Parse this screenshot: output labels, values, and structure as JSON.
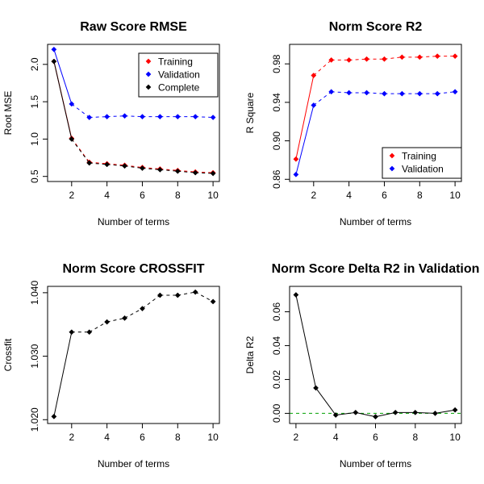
{
  "chart_data": [
    {
      "type": "line",
      "title": "Raw Score RMSE",
      "xlabel": "Number of terms",
      "ylabel": "Root MSE",
      "xlim": [
        1,
        10
      ],
      "ylim": [
        0.5,
        2.2
      ],
      "xticks": [
        2,
        4,
        6,
        8,
        10
      ],
      "yticks": [
        0.5,
        1.0,
        1.5,
        2.0
      ],
      "ytick_labels": [
        "0.5",
        "1.0",
        "1.5",
        "2.0"
      ],
      "legend_position": "top-right",
      "legend": [
        {
          "label": "Training",
          "color": "#ff0000"
        },
        {
          "label": "Validation",
          "color": "#0000ff"
        },
        {
          "label": "Complete",
          "color": "#000000"
        }
      ],
      "x": [
        1,
        2,
        3,
        4,
        5,
        6,
        7,
        8,
        9,
        10
      ],
      "series": [
        {
          "name": "Training",
          "color": "#ff0000",
          "values": [
            2.04,
            1.01,
            0.69,
            0.67,
            0.65,
            0.62,
            0.6,
            0.58,
            0.56,
            0.55
          ]
        },
        {
          "name": "Validation",
          "color": "#0000ff",
          "values": [
            2.2,
            1.47,
            1.29,
            1.3,
            1.31,
            1.3,
            1.3,
            1.3,
            1.3,
            1.29
          ]
        },
        {
          "name": "Complete",
          "color": "#000000",
          "values": [
            2.04,
            1.0,
            0.68,
            0.66,
            0.64,
            0.61,
            0.59,
            0.57,
            0.55,
            0.54
          ]
        }
      ]
    },
    {
      "type": "line",
      "title": "Norm Score R2",
      "xlabel": "Number of terms",
      "ylabel": "R Square",
      "xlim": [
        1,
        10
      ],
      "ylim": [
        0.863,
        0.995
      ],
      "xticks": [
        2,
        4,
        6,
        8,
        10
      ],
      "yticks": [
        0.86,
        0.9,
        0.94,
        0.98
      ],
      "ytick_labels": [
        "0.86",
        "0.90",
        "0.94",
        "0.98"
      ],
      "legend_position": "bottom-right",
      "legend": [
        {
          "label": "Training",
          "color": "#ff0000"
        },
        {
          "label": "Validation",
          "color": "#0000ff"
        }
      ],
      "x": [
        1,
        2,
        3,
        4,
        5,
        6,
        7,
        8,
        9,
        10
      ],
      "series": [
        {
          "name": "Training",
          "color": "#ff0000",
          "values": [
            0.881,
            0.968,
            0.984,
            0.984,
            0.985,
            0.985,
            0.987,
            0.987,
            0.988,
            0.988
          ]
        },
        {
          "name": "Validation",
          "color": "#0000ff",
          "values": [
            0.865,
            0.937,
            0.951,
            0.95,
            0.95,
            0.949,
            0.949,
            0.949,
            0.949,
            0.951
          ]
        }
      ]
    },
    {
      "type": "line",
      "title": "Norm Score CROSSFIT",
      "xlabel": "Number of terms",
      "ylabel": "Crossfit",
      "xlim": [
        1,
        10
      ],
      "ylim": [
        1.0202,
        1.0402
      ],
      "xticks": [
        2,
        4,
        6,
        8,
        10
      ],
      "yticks": [
        1.02,
        1.03,
        1.04
      ],
      "ytick_labels": [
        "1.020",
        "1.030",
        "1.040"
      ],
      "x": [
        1,
        2,
        3,
        4,
        5,
        6,
        7,
        8,
        9,
        10
      ],
      "series": [
        {
          "color": "#000000",
          "values": [
            1.0205,
            1.0338,
            1.0338,
            1.0354,
            1.036,
            1.0375,
            1.0396,
            1.0396,
            1.0401,
            1.0386
          ]
        }
      ]
    },
    {
      "type": "line",
      "title": "Norm Score Delta R2 in Validation",
      "xlabel": "Number of terms",
      "ylabel": "Delta R2",
      "xlim": [
        2,
        10
      ],
      "ylim": [
        -0.003,
        0.072
      ],
      "xticks": [
        2,
        4,
        6,
        8,
        10
      ],
      "yticks": [
        0.0,
        0.02,
        0.04,
        0.06
      ],
      "ytick_labels": [
        "0.00",
        "0.02",
        "0.04",
        "0.06"
      ],
      "reference_line": {
        "y": 0,
        "color": "#00a000"
      },
      "x": [
        2,
        3,
        4,
        5,
        6,
        7,
        8,
        9,
        10
      ],
      "series": [
        {
          "color": "#000000",
          "values": [
            0.07,
            0.015,
            -0.001,
            0.0005,
            -0.002,
            0.0005,
            0.0005,
            0.0,
            0.002
          ]
        }
      ]
    }
  ]
}
